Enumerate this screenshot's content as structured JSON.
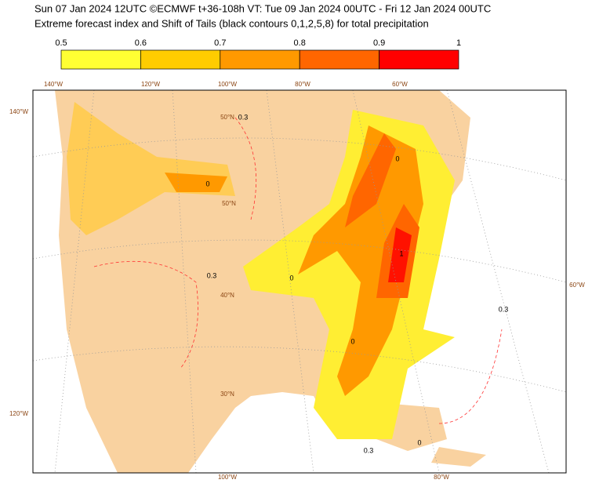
{
  "header": {
    "line1": "Sun 07 Jan 2024 12UTC ©ECMWF t+36-108h  VT: Tue 09 Jan 2024 00UTC - Fri 12 Jan 2024 00UTC",
    "line2": "Extreme forecast index and Shift of Tails (black contours 0,1,2,5,8) for total precipitation"
  },
  "colorbar": {
    "ticks": [
      0.5,
      0.6,
      0.7,
      0.8,
      0.9,
      1
    ],
    "colors": [
      "#ffff33",
      "#ffcc00",
      "#ff9900",
      "#ff6600",
      "#ff0000"
    ]
  },
  "map": {
    "top_labels": [
      "140°W",
      "120°W",
      "100°W",
      "80°W",
      "60°W"
    ],
    "left_labels": [
      "140°W",
      "120°W"
    ],
    "right_labels": [
      "60°W"
    ],
    "bottom_labels": [
      "100°W",
      "80°W"
    ],
    "lat_labels": [
      "50°N",
      "50°N",
      "40°N",
      "30°N"
    ],
    "contour_labels": [
      "0",
      "0",
      "0",
      "0",
      "1",
      "0",
      "0.3",
      "0.3",
      "0.3",
      "0.3"
    ]
  }
}
